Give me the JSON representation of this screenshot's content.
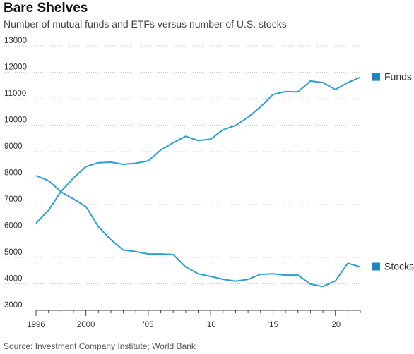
{
  "chart_data": {
    "type": "line",
    "title": "Bare Shelves",
    "subtitle": "Number of mutual funds and ETFs versus number of U.S. stocks",
    "source": "Source: Investment Company Institute; World Bank",
    "xlabel": "",
    "ylabel": "",
    "xlim": [
      1996,
      2022
    ],
    "ylim": [
      3000,
      13000
    ],
    "yticks": [
      3000,
      4000,
      5000,
      6000,
      7000,
      8000,
      9000,
      10000,
      11000,
      12000,
      13000
    ],
    "ytick_labels": [
      "3000",
      "4000",
      "5000",
      "6000",
      "7000",
      "8000",
      "9000",
      "10000",
      "11000",
      "12000",
      "13000"
    ],
    "xticks": [
      1996,
      2000,
      2005,
      2010,
      2015,
      2020
    ],
    "xtick_labels": [
      "1996",
      "2000",
      "'05",
      "'10",
      "'15",
      "'20"
    ],
    "grid": "horizontal dotted",
    "legend_placement": "right, at line ends",
    "color": "#2a9fd0",
    "x": [
      1996,
      1997,
      1998,
      1999,
      2000,
      2001,
      2002,
      2003,
      2004,
      2005,
      2006,
      2007,
      2008,
      2009,
      2010,
      2011,
      2012,
      2013,
      2014,
      2015,
      2016,
      2017,
      2018,
      2019,
      2020,
      2021,
      2022
    ],
    "series": [
      {
        "name": "Funds",
        "values": [
          6290,
          6780,
          7490,
          8000,
          8430,
          8580,
          8600,
          8520,
          8560,
          8650,
          9060,
          9340,
          9580,
          9420,
          9470,
          9830,
          9990,
          10300,
          10690,
          11160,
          11270,
          11260,
          11670,
          11610,
          11350,
          11610,
          11810
        ]
      },
      {
        "name": "Stocks",
        "values": [
          8090,
          7900,
          7480,
          7210,
          6920,
          6160,
          5670,
          5280,
          5220,
          5130,
          5130,
          5110,
          4640,
          4380,
          4280,
          4170,
          4100,
          4170,
          4360,
          4380,
          4330,
          4330,
          3990,
          3900,
          4110,
          4780,
          4640
        ]
      }
    ]
  }
}
